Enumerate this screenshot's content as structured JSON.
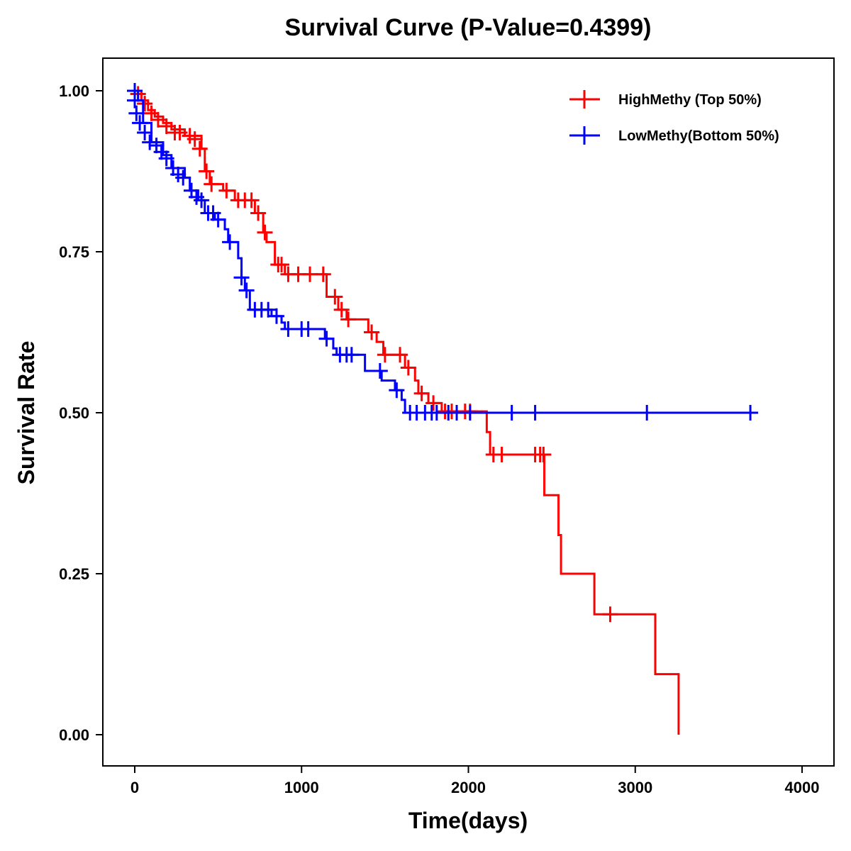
{
  "chart_data": {
    "type": "line",
    "title": "Survival Curve (P-Value=0.4399)",
    "xlabel": "Time(days)",
    "ylabel": "Survival Rate",
    "xlim": [
      -190,
      4190
    ],
    "ylim": [
      -0.05,
      1.05
    ],
    "xticks": [
      0,
      1000,
      2000,
      3000,
      4000
    ],
    "xtick_labels": [
      "0",
      "1000",
      "2000",
      "3000",
      "4000"
    ],
    "yticks": [
      0,
      0.25,
      0.5,
      0.75,
      1.0
    ],
    "ytick_labels": [
      "0.00",
      "0.25",
      "0.50",
      "0.75",
      "1.00"
    ],
    "grid": false,
    "legend_position": "top-right",
    "series": [
      {
        "name": "HighMethy (Top 50%)",
        "color": "#ff0000",
        "steps": [
          [
            0,
            1.0
          ],
          [
            40,
            0.985
          ],
          [
            80,
            0.97
          ],
          [
            120,
            0.96
          ],
          [
            170,
            0.95
          ],
          [
            220,
            0.94
          ],
          [
            300,
            0.93
          ],
          [
            400,
            0.91
          ],
          [
            420,
            0.875
          ],
          [
            450,
            0.855
          ],
          [
            530,
            0.845
          ],
          [
            600,
            0.83
          ],
          [
            720,
            0.81
          ],
          [
            770,
            0.78
          ],
          [
            790,
            0.765
          ],
          [
            840,
            0.73
          ],
          [
            900,
            0.715
          ],
          [
            1150,
            0.68
          ],
          [
            1220,
            0.66
          ],
          [
            1270,
            0.645
          ],
          [
            1400,
            0.625
          ],
          [
            1450,
            0.61
          ],
          [
            1490,
            0.59
          ],
          [
            1620,
            0.57
          ],
          [
            1680,
            0.55
          ],
          [
            1700,
            0.53
          ],
          [
            1760,
            0.515
          ],
          [
            1840,
            0.502
          ],
          [
            2110,
            0.47
          ],
          [
            2130,
            0.435
          ],
          [
            2455,
            0.372
          ],
          [
            2540,
            0.31
          ],
          [
            2555,
            0.25
          ],
          [
            2755,
            0.187
          ],
          [
            3120,
            0.094
          ],
          [
            3260,
            0.0
          ]
        ],
        "end": 3260,
        "censored": [
          [
            20,
            0.995
          ],
          [
            60,
            0.98
          ],
          [
            100,
            0.965
          ],
          [
            140,
            0.955
          ],
          [
            190,
            0.945
          ],
          [
            240,
            0.935
          ],
          [
            270,
            0.935
          ],
          [
            330,
            0.93
          ],
          [
            360,
            0.925
          ],
          [
            390,
            0.91
          ],
          [
            430,
            0.875
          ],
          [
            460,
            0.855
          ],
          [
            550,
            0.845
          ],
          [
            620,
            0.83
          ],
          [
            660,
            0.83
          ],
          [
            700,
            0.83
          ],
          [
            740,
            0.81
          ],
          [
            780,
            0.78
          ],
          [
            860,
            0.73
          ],
          [
            880,
            0.73
          ],
          [
            920,
            0.715
          ],
          [
            980,
            0.715
          ],
          [
            1050,
            0.715
          ],
          [
            1130,
            0.715
          ],
          [
            1200,
            0.68
          ],
          [
            1240,
            0.66
          ],
          [
            1280,
            0.645
          ],
          [
            1420,
            0.625
          ],
          [
            1500,
            0.59
          ],
          [
            1590,
            0.59
          ],
          [
            1640,
            0.57
          ],
          [
            1720,
            0.53
          ],
          [
            1790,
            0.515
          ],
          [
            1860,
            0.502
          ],
          [
            1900,
            0.502
          ],
          [
            1980,
            0.502
          ],
          [
            2010,
            0.502
          ],
          [
            2150,
            0.435
          ],
          [
            2200,
            0.435
          ],
          [
            2400,
            0.435
          ],
          [
            2430,
            0.435
          ],
          [
            2450,
            0.435
          ],
          [
            2850,
            0.187
          ]
        ]
      },
      {
        "name": "LowMethy(Bottom 50%)",
        "color": "#0000ff",
        "steps": [
          [
            0,
            1.0
          ],
          [
            20,
            0.985
          ],
          [
            50,
            0.95
          ],
          [
            100,
            0.92
          ],
          [
            170,
            0.9
          ],
          [
            220,
            0.88
          ],
          [
            300,
            0.865
          ],
          [
            330,
            0.845
          ],
          [
            380,
            0.83
          ],
          [
            420,
            0.81
          ],
          [
            480,
            0.8
          ],
          [
            540,
            0.785
          ],
          [
            560,
            0.765
          ],
          [
            620,
            0.74
          ],
          [
            640,
            0.71
          ],
          [
            660,
            0.69
          ],
          [
            690,
            0.66
          ],
          [
            820,
            0.65
          ],
          [
            880,
            0.64
          ],
          [
            900,
            0.63
          ],
          [
            1140,
            0.615
          ],
          [
            1190,
            0.6
          ],
          [
            1210,
            0.59
          ],
          [
            1380,
            0.565
          ],
          [
            1480,
            0.55
          ],
          [
            1560,
            0.535
          ],
          [
            1600,
            0.52
          ],
          [
            1620,
            0.5
          ]
        ],
        "end": 3710,
        "censored": [
          [
            0,
            1.0
          ],
          [
            0,
            0.985
          ],
          [
            10,
            0.965
          ],
          [
            30,
            0.95
          ],
          [
            60,
            0.935
          ],
          [
            90,
            0.92
          ],
          [
            130,
            0.915
          ],
          [
            160,
            0.905
          ],
          [
            190,
            0.895
          ],
          [
            230,
            0.88
          ],
          [
            260,
            0.87
          ],
          [
            290,
            0.865
          ],
          [
            340,
            0.845
          ],
          [
            370,
            0.835
          ],
          [
            400,
            0.83
          ],
          [
            440,
            0.81
          ],
          [
            470,
            0.81
          ],
          [
            500,
            0.8
          ],
          [
            570,
            0.765
          ],
          [
            640,
            0.71
          ],
          [
            670,
            0.69
          ],
          [
            720,
            0.66
          ],
          [
            760,
            0.66
          ],
          [
            800,
            0.66
          ],
          [
            850,
            0.65
          ],
          [
            920,
            0.63
          ],
          [
            1000,
            0.63
          ],
          [
            1040,
            0.63
          ],
          [
            1150,
            0.615
          ],
          [
            1230,
            0.59
          ],
          [
            1270,
            0.59
          ],
          [
            1300,
            0.59
          ],
          [
            1470,
            0.565
          ],
          [
            1570,
            0.535
          ],
          [
            1650,
            0.5
          ],
          [
            1690,
            0.5
          ],
          [
            1740,
            0.5
          ],
          [
            1780,
            0.5
          ],
          [
            1810,
            0.5
          ],
          [
            1880,
            0.5
          ],
          [
            1930,
            0.5
          ],
          [
            2010,
            0.5
          ],
          [
            2260,
            0.5
          ],
          [
            2400,
            0.5
          ],
          [
            3070,
            0.5
          ],
          [
            3690,
            0.5
          ]
        ]
      }
    ]
  }
}
